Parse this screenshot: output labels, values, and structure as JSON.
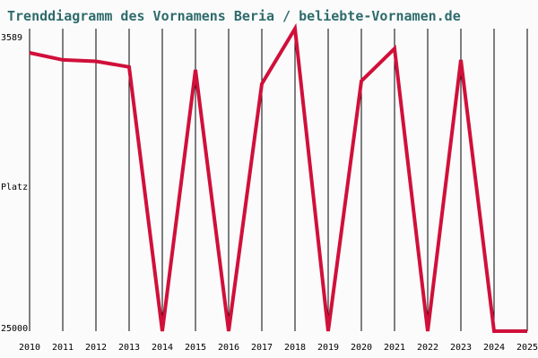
{
  "chart_data": {
    "type": "line",
    "title": "Trenddiagramm des Vornamens Beria / beliebte-Vornamen.de",
    "ylabel": "Platz",
    "y_top_label": "3589",
    "y_bottom_label": "25000",
    "ylim": [
      25000,
      3589
    ],
    "x": [
      "2010",
      "2011",
      "2012",
      "2013",
      "2014",
      "2015",
      "2016",
      "2017",
      "2018",
      "2019",
      "2020",
      "2021",
      "2022",
      "2023",
      "2024",
      "2025"
    ],
    "series": [
      {
        "values": [
          5300,
          5800,
          5900,
          6300,
          25000,
          6500,
          25000,
          7500,
          3589,
          25000,
          7300,
          5000,
          25000,
          5800,
          25000,
          25000
        ]
      }
    ],
    "grid": true,
    "colors": {
      "line": "#d0103a",
      "grid": "#000000",
      "title": "#2f6b6b",
      "background": "#fbfbfb"
    }
  }
}
